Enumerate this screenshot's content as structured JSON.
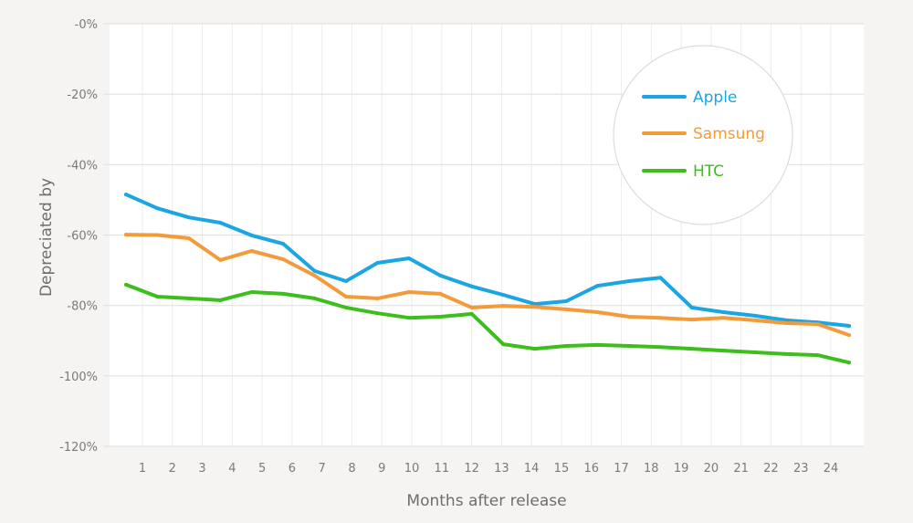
{
  "chart_data": {
    "type": "line",
    "title": "",
    "xlabel": "Months after release",
    "ylabel": "Depreciated by",
    "x": [
      1,
      2,
      3,
      4,
      5,
      6,
      7,
      8,
      9,
      10,
      11,
      12,
      13,
      14,
      15,
      16,
      17,
      18,
      19,
      20,
      21,
      22,
      23,
      24
    ],
    "x_tick_labels": [
      "1",
      "2",
      "3",
      "4",
      "5",
      "6",
      "7",
      "8",
      "9",
      "10",
      "11",
      "12",
      "13",
      "14",
      "15",
      "16",
      "17",
      "18",
      "19",
      "20",
      "21",
      "22",
      "23",
      "24"
    ],
    "y_ticks": [
      0,
      -20,
      -40,
      -60,
      -80,
      -100,
      -120
    ],
    "y_tick_labels": [
      "-0%",
      "-20%",
      "-40%",
      "-60%",
      "-80%",
      "-100%",
      "-120%"
    ],
    "ylim": [
      -120,
      0
    ],
    "grid": true,
    "legend_position": "top-right",
    "series": [
      {
        "name": "Apple",
        "color": "#1ba6e3",
        "values": [
          -48.5,
          -52.4,
          -55.0,
          -56.5,
          -60.1,
          -62.5,
          -70.2,
          -73.1,
          -67.9,
          -66.6,
          -71.5,
          -74.6,
          -77.0,
          -79.6,
          -78.8,
          -74.4,
          -73.1,
          -72.1,
          -80.6,
          -81.9,
          -82.9,
          -84.2,
          -84.8,
          -85.8
        ]
      },
      {
        "name": "Samsung",
        "color": "#f39a3a",
        "values": [
          -59.9,
          -60.0,
          -60.9,
          -67.1,
          -64.5,
          -66.9,
          -71.5,
          -77.5,
          -78.0,
          -76.2,
          -76.7,
          -80.6,
          -80.1,
          -80.4,
          -81.1,
          -81.9,
          -83.2,
          -83.5,
          -84.0,
          -83.5,
          -84.2,
          -85.0,
          -85.3,
          -88.4
        ]
      },
      {
        "name": "HTC",
        "color": "#3cbf1c",
        "values": [
          -74.1,
          -77.5,
          -78.0,
          -78.5,
          -76.2,
          -76.7,
          -78.0,
          -80.6,
          -82.2,
          -83.5,
          -83.2,
          -82.4,
          -91.0,
          -92.3,
          -91.5,
          -91.2,
          -91.5,
          -91.8,
          -92.3,
          -92.8,
          -93.3,
          -93.8,
          -94.1,
          -96.2
        ]
      }
    ]
  }
}
